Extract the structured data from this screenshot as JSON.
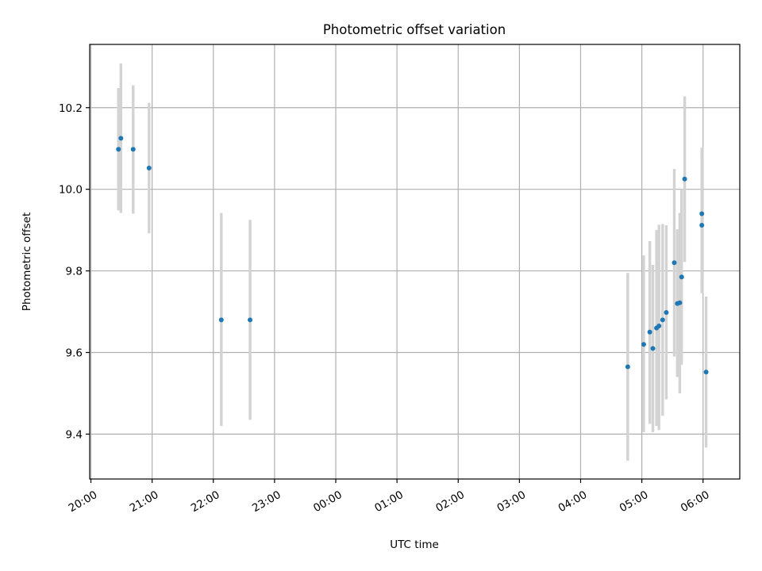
{
  "chart_data": {
    "type": "scatter",
    "title": "Photometric offset variation",
    "xlabel": "UTC time",
    "ylabel": "Photometric offset",
    "x_unit": "hours after 20:00 UTC",
    "xlim": [
      -0.02,
      10.6
    ],
    "ylim": [
      9.29,
      10.355
    ],
    "grid": true,
    "x_ticks": [
      {
        "v": 0,
        "label": "20:00"
      },
      {
        "v": 1,
        "label": "21:00"
      },
      {
        "v": 2,
        "label": "22:00"
      },
      {
        "v": 3,
        "label": "23:00"
      },
      {
        "v": 4,
        "label": "00:00"
      },
      {
        "v": 5,
        "label": "01:00"
      },
      {
        "v": 6,
        "label": "02:00"
      },
      {
        "v": 7,
        "label": "03:00"
      },
      {
        "v": 8,
        "label": "04:00"
      },
      {
        "v": 9,
        "label": "05:00"
      },
      {
        "v": 10,
        "label": "06:00"
      }
    ],
    "y_ticks": [
      {
        "v": 9.4,
        "label": "9.4"
      },
      {
        "v": 9.6,
        "label": "9.6"
      },
      {
        "v": 9.8,
        "label": "9.8"
      },
      {
        "v": 10.0,
        "label": "10.0"
      },
      {
        "v": 10.2,
        "label": "10.2"
      }
    ],
    "colors": {
      "points": "#1f77b4",
      "errorbars": "#d3d3d3",
      "grid": "#b0b0b0"
    },
    "points": [
      {
        "x": 0.45,
        "y": 10.098,
        "lo": 9.948,
        "hi": 10.248
      },
      {
        "x": 0.49,
        "y": 10.125,
        "lo": 9.942,
        "hi": 10.308
      },
      {
        "x": 0.69,
        "y": 10.098,
        "lo": 9.94,
        "hi": 10.255
      },
      {
        "x": 0.95,
        "y": 10.052,
        "lo": 9.892,
        "hi": 10.212
      },
      {
        "x": 2.13,
        "y": 9.68,
        "lo": 9.42,
        "hi": 9.942
      },
      {
        "x": 2.6,
        "y": 9.68,
        "lo": 9.435,
        "hi": 9.925
      },
      {
        "x": 8.77,
        "y": 9.565,
        "lo": 9.335,
        "hi": 9.795
      },
      {
        "x": 9.03,
        "y": 9.62,
        "lo": 9.405,
        "hi": 9.838
      },
      {
        "x": 9.13,
        "y": 9.65,
        "lo": 9.425,
        "hi": 9.873
      },
      {
        "x": 9.18,
        "y": 9.61,
        "lo": 9.405,
        "hi": 9.815
      },
      {
        "x": 9.24,
        "y": 9.66,
        "lo": 9.42,
        "hi": 9.9
      },
      {
        "x": 9.28,
        "y": 9.665,
        "lo": 9.41,
        "hi": 9.913
      },
      {
        "x": 9.34,
        "y": 9.68,
        "lo": 9.445,
        "hi": 9.915
      },
      {
        "x": 9.4,
        "y": 9.698,
        "lo": 9.485,
        "hi": 9.912
      },
      {
        "x": 9.53,
        "y": 9.82,
        "lo": 9.59,
        "hi": 10.05
      },
      {
        "x": 9.58,
        "y": 9.72,
        "lo": 9.54,
        "hi": 9.902
      },
      {
        "x": 9.62,
        "y": 9.722,
        "lo": 9.5,
        "hi": 9.942
      },
      {
        "x": 9.65,
        "y": 9.785,
        "lo": 9.57,
        "hi": 10.0
      },
      {
        "x": 9.7,
        "y": 10.025,
        "lo": 9.822,
        "hi": 10.228
      },
      {
        "x": 9.98,
        "y": 9.94,
        "lo": 9.775,
        "hi": 10.102
      },
      {
        "x": 9.98,
        "y": 9.912,
        "lo": 9.745,
        "hi": 10.08
      },
      {
        "x": 10.05,
        "y": 9.552,
        "lo": 9.367,
        "hi": 9.737
      }
    ]
  }
}
